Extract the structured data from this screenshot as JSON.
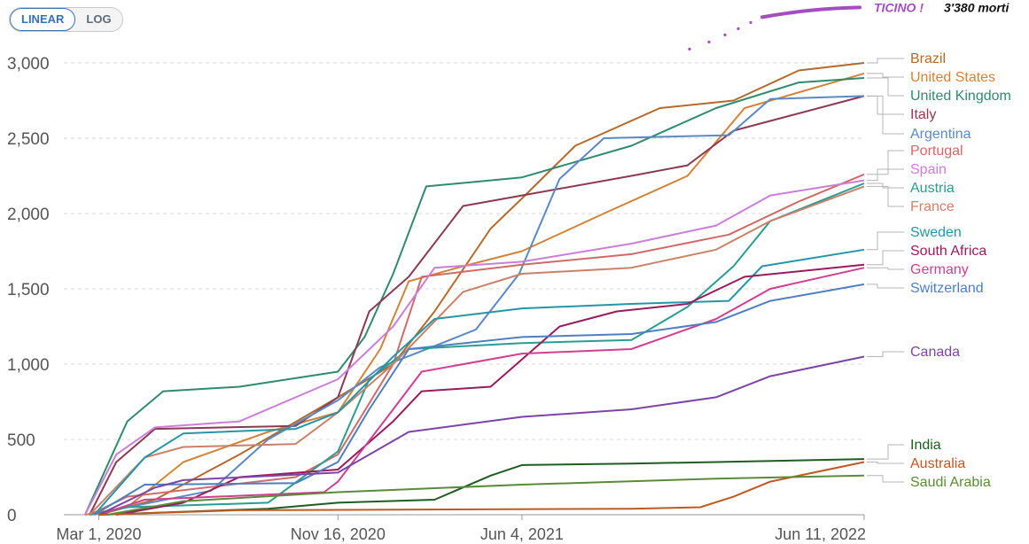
{
  "controls": {
    "linear_label": "LINEAR",
    "log_label": "LOG",
    "active": "LINEAR"
  },
  "annotation": {
    "label": "TICINO !",
    "value_text": "3'380 morti",
    "value": 3380,
    "color": "#a14fc0",
    "text_color": "#111111"
  },
  "chart_data": {
    "type": "line",
    "title": "",
    "xlabel": "",
    "ylabel": "",
    "x_ticks": [
      "Mar 1, 2020",
      "Nov 16, 2020",
      "Jun 4, 2021",
      "Jun 11, 2022"
    ],
    "x_range": [
      "2020-01-23",
      "2022-06-11"
    ],
    "ylim": [
      0,
      3300
    ],
    "y_ticks": [
      0,
      500,
      1000,
      1500,
      2000,
      2500,
      3000
    ],
    "y_tick_labels": [
      "0",
      "500",
      "1,000",
      "1,500",
      "2,000",
      "2,500",
      "3,000"
    ],
    "grid": "horizontal dashed",
    "legend": "right",
    "series": [
      {
        "name": "Brazil",
        "color": "#b36a2e",
        "points": [
          [
            "2020-03-01",
            0
          ],
          [
            "2020-05-01",
            100
          ],
          [
            "2020-08-01",
            400
          ],
          [
            "2020-11-16",
            780
          ],
          [
            "2021-01-15",
            1000
          ],
          [
            "2021-03-01",
            1350
          ],
          [
            "2021-05-01",
            1900
          ],
          [
            "2021-06-04",
            2100
          ],
          [
            "2021-08-01",
            2450
          ],
          [
            "2021-11-01",
            2700
          ],
          [
            "2022-01-20",
            2750
          ],
          [
            "2022-04-01",
            2950
          ],
          [
            "2022-06-11",
            3000
          ]
        ]
      },
      {
        "name": "United States",
        "color": "#d0843a",
        "points": [
          [
            "2020-02-15",
            0
          ],
          [
            "2020-04-01",
            50
          ],
          [
            "2020-06-01",
            350
          ],
          [
            "2020-09-01",
            550
          ],
          [
            "2020-11-16",
            680
          ],
          [
            "2021-01-01",
            1100
          ],
          [
            "2021-02-01",
            1550
          ],
          [
            "2021-04-01",
            1650
          ],
          [
            "2021-06-04",
            1750
          ],
          [
            "2021-09-01",
            2000
          ],
          [
            "2021-12-01",
            2250
          ],
          [
            "2022-02-01",
            2700
          ],
          [
            "2022-06-11",
            2930
          ]
        ]
      },
      {
        "name": "United Kingdom",
        "color": "#2f8a6e",
        "points": [
          [
            "2020-02-15",
            0
          ],
          [
            "2020-04-01",
            620
          ],
          [
            "2020-05-10",
            820
          ],
          [
            "2020-08-01",
            850
          ],
          [
            "2020-11-16",
            950
          ],
          [
            "2020-12-15",
            1180
          ],
          [
            "2021-01-15",
            1600
          ],
          [
            "2021-02-20",
            2180
          ],
          [
            "2021-06-04",
            2240
          ],
          [
            "2021-10-01",
            2450
          ],
          [
            "2022-01-01",
            2700
          ],
          [
            "2022-04-01",
            2870
          ],
          [
            "2022-06-11",
            2900
          ]
        ]
      },
      {
        "name": "Italy",
        "color": "#8b3a52",
        "points": [
          [
            "2020-02-20",
            0
          ],
          [
            "2020-03-20",
            350
          ],
          [
            "2020-05-01",
            570
          ],
          [
            "2020-10-01",
            590
          ],
          [
            "2020-11-16",
            780
          ],
          [
            "2020-12-20",
            1350
          ],
          [
            "2021-02-01",
            1580
          ],
          [
            "2021-04-01",
            2050
          ],
          [
            "2021-06-04",
            2120
          ],
          [
            "2021-10-01",
            2250
          ],
          [
            "2021-12-01",
            2320
          ],
          [
            "2022-01-20",
            2550
          ],
          [
            "2022-06-11",
            2780
          ]
        ]
      },
      {
        "name": "Argentina",
        "color": "#5c88c4",
        "points": [
          [
            "2020-02-20",
            0
          ],
          [
            "2020-07-01",
            160
          ],
          [
            "2020-09-01",
            500
          ],
          [
            "2020-11-16",
            760
          ],
          [
            "2021-01-01",
            980
          ],
          [
            "2021-03-01",
            1120
          ],
          [
            "2021-04-15",
            1230
          ],
          [
            "2021-06-01",
            1600
          ],
          [
            "2021-07-15",
            2230
          ],
          [
            "2021-09-01",
            2500
          ],
          [
            "2022-01-15",
            2520
          ],
          [
            "2022-03-01",
            2760
          ],
          [
            "2022-06-11",
            2780
          ]
        ]
      },
      {
        "name": "Portugal",
        "color": "#d06a6a",
        "points": [
          [
            "2020-02-20",
            0
          ],
          [
            "2020-04-01",
            120
          ],
          [
            "2020-10-01",
            250
          ],
          [
            "2020-11-16",
            400
          ],
          [
            "2021-01-15",
            1000
          ],
          [
            "2021-02-15",
            1580
          ],
          [
            "2021-06-04",
            1660
          ],
          [
            "2021-10-01",
            1730
          ],
          [
            "2022-01-15",
            1860
          ],
          [
            "2022-04-01",
            2080
          ],
          [
            "2022-06-11",
            2260
          ]
        ]
      },
      {
        "name": "Spain",
        "color": "#c97fd6",
        "points": [
          [
            "2020-02-15",
            0
          ],
          [
            "2020-03-20",
            400
          ],
          [
            "2020-05-01",
            580
          ],
          [
            "2020-08-01",
            620
          ],
          [
            "2020-11-16",
            900
          ],
          [
            "2021-01-15",
            1250
          ],
          [
            "2021-03-01",
            1640
          ],
          [
            "2021-06-04",
            1680
          ],
          [
            "2021-10-01",
            1800
          ],
          [
            "2022-01-01",
            1920
          ],
          [
            "2022-03-01",
            2120
          ],
          [
            "2022-06-11",
            2220
          ]
        ]
      },
      {
        "name": "Austria",
        "color": "#2a9d8f",
        "points": [
          [
            "2020-02-20",
            0
          ],
          [
            "2020-04-01",
            50
          ],
          [
            "2020-09-01",
            80
          ],
          [
            "2020-11-16",
            420
          ],
          [
            "2020-12-20",
            900
          ],
          [
            "2021-02-01",
            1100
          ],
          [
            "2021-06-04",
            1140
          ],
          [
            "2021-10-01",
            1160
          ],
          [
            "2021-12-01",
            1380
          ],
          [
            "2022-01-20",
            1650
          ],
          [
            "2022-03-01",
            1950
          ],
          [
            "2022-06-11",
            2200
          ]
        ]
      },
      {
        "name": "France",
        "color": "#c8826b",
        "points": [
          [
            "2020-02-20",
            0
          ],
          [
            "2020-04-20",
            380
          ],
          [
            "2020-06-01",
            450
          ],
          [
            "2020-10-01",
            470
          ],
          [
            "2020-11-16",
            680
          ],
          [
            "2021-01-15",
            1000
          ],
          [
            "2021-04-01",
            1480
          ],
          [
            "2021-06-04",
            1600
          ],
          [
            "2021-10-01",
            1640
          ],
          [
            "2022-01-01",
            1760
          ],
          [
            "2022-03-01",
            1950
          ],
          [
            "2022-06-11",
            2180
          ]
        ]
      },
      {
        "name": "Sweden",
        "color": "#2696a6",
        "points": [
          [
            "2020-02-25",
            0
          ],
          [
            "2020-04-20",
            380
          ],
          [
            "2020-06-01",
            540
          ],
          [
            "2020-10-01",
            570
          ],
          [
            "2020-11-16",
            680
          ],
          [
            "2021-01-15",
            1050
          ],
          [
            "2021-03-01",
            1300
          ],
          [
            "2021-06-04",
            1370
          ],
          [
            "2021-10-01",
            1400
          ],
          [
            "2022-01-15",
            1420
          ],
          [
            "2022-02-20",
            1650
          ],
          [
            "2022-06-11",
            1760
          ]
        ]
      },
      {
        "name": "South Africa",
        "color": "#9a1b5c",
        "points": [
          [
            "2020-03-20",
            0
          ],
          [
            "2020-06-01",
            80
          ],
          [
            "2020-08-01",
            250
          ],
          [
            "2020-11-16",
            300
          ],
          [
            "2021-01-15",
            620
          ],
          [
            "2021-02-15",
            820
          ],
          [
            "2021-05-01",
            850
          ],
          [
            "2021-07-15",
            1250
          ],
          [
            "2021-09-15",
            1350
          ],
          [
            "2021-12-01",
            1400
          ],
          [
            "2022-02-01",
            1580
          ],
          [
            "2022-06-11",
            1660
          ]
        ]
      },
      {
        "name": "Germany",
        "color": "#d13f8f",
        "points": [
          [
            "2020-03-01",
            0
          ],
          [
            "2020-04-20",
            100
          ],
          [
            "2020-11-01",
            150
          ],
          [
            "2020-11-16",
            220
          ],
          [
            "2021-01-15",
            700
          ],
          [
            "2021-02-15",
            950
          ],
          [
            "2021-06-04",
            1070
          ],
          [
            "2021-10-01",
            1100
          ],
          [
            "2022-01-01",
            1300
          ],
          [
            "2022-03-01",
            1500
          ],
          [
            "2022-06-11",
            1640
          ]
        ]
      },
      {
        "name": "Switzerland",
        "color": "#4f7fbf",
        "points": [
          [
            "2020-02-25",
            0
          ],
          [
            "2020-04-20",
            200
          ],
          [
            "2020-10-01",
            210
          ],
          [
            "2020-11-16",
            350
          ],
          [
            "2020-12-20",
            700
          ],
          [
            "2021-02-01",
            1100
          ],
          [
            "2021-06-04",
            1180
          ],
          [
            "2021-10-01",
            1200
          ],
          [
            "2022-01-01",
            1280
          ],
          [
            "2022-03-01",
            1420
          ],
          [
            "2022-06-11",
            1530
          ]
        ]
      },
      {
        "name": "Canada",
        "color": "#7b45a6",
        "points": [
          [
            "2020-03-01",
            0
          ],
          [
            "2020-05-01",
            180
          ],
          [
            "2020-06-01",
            230
          ],
          [
            "2020-11-16",
            280
          ],
          [
            "2021-02-01",
            550
          ],
          [
            "2021-06-04",
            650
          ],
          [
            "2021-10-01",
            700
          ],
          [
            "2022-01-01",
            780
          ],
          [
            "2022-03-01",
            920
          ],
          [
            "2022-06-11",
            1050
          ]
        ]
      },
      {
        "name": "India",
        "color": "#1f5c23",
        "points": [
          [
            "2020-03-01",
            0
          ],
          [
            "2020-09-01",
            40
          ],
          [
            "2020-11-16",
            80
          ],
          [
            "2021-03-01",
            100
          ],
          [
            "2021-05-01",
            260
          ],
          [
            "2021-06-04",
            330
          ],
          [
            "2021-10-01",
            340
          ],
          [
            "2022-01-01",
            350
          ],
          [
            "2022-06-11",
            370
          ]
        ]
      },
      {
        "name": "Australia",
        "color": "#c0581f",
        "points": [
          [
            "2020-03-01",
            0
          ],
          [
            "2020-08-01",
            30
          ],
          [
            "2021-10-01",
            40
          ],
          [
            "2021-12-15",
            50
          ],
          [
            "2022-01-20",
            120
          ],
          [
            "2022-03-01",
            220
          ],
          [
            "2022-06-11",
            350
          ]
        ]
      },
      {
        "name": "Saudi Arabia",
        "color": "#5a8a3a",
        "points": [
          [
            "2020-03-10",
            0
          ],
          [
            "2020-06-01",
            90
          ],
          [
            "2020-11-16",
            150
          ],
          [
            "2021-06-04",
            200
          ],
          [
            "2022-01-01",
            240
          ],
          [
            "2022-06-11",
            260
          ]
        ]
      }
    ]
  }
}
